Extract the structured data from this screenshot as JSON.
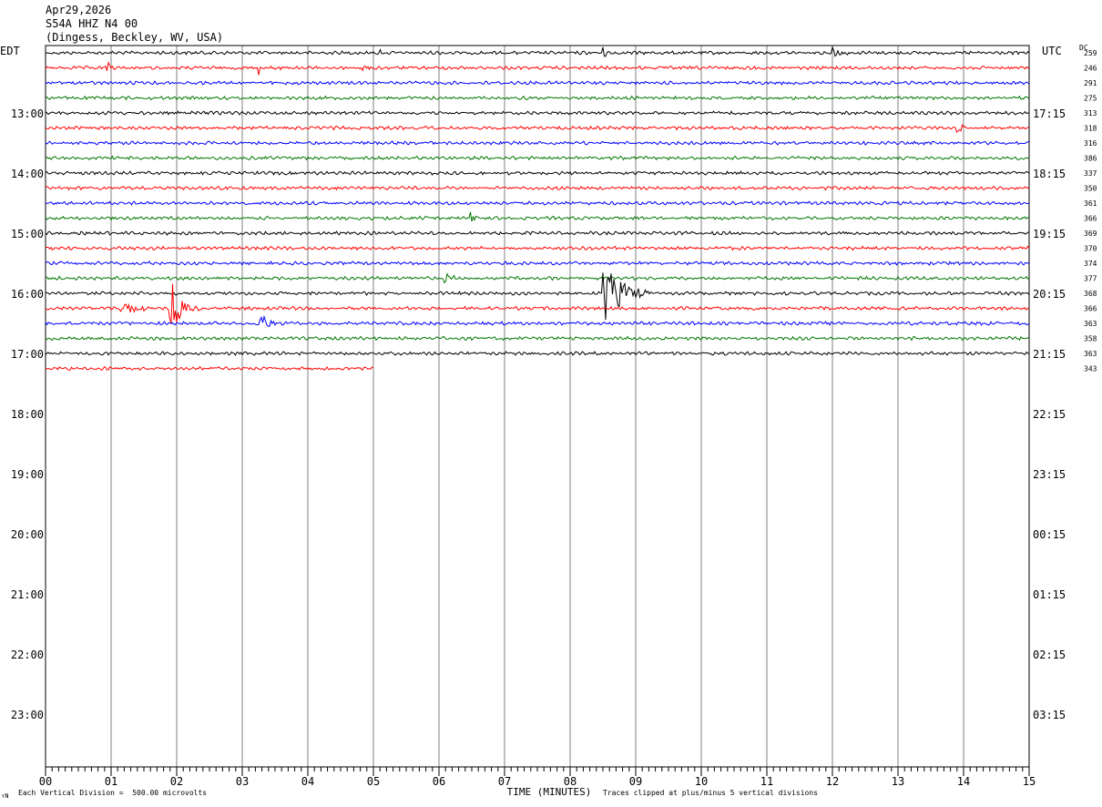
{
  "header": {
    "date": "Apr29,2026",
    "station": "S54A HHZ N4 00",
    "location": "(Dingess, Beckley, WV, USA)"
  },
  "left_zone": "EDT",
  "right_zone": "UTC",
  "dc_label": "DC",
  "footer": {
    "scale_note": "Each Vertical Division =  500.00 microvolts",
    "clip_note": "Traces clipped at plus/minus 5 vertical divisions",
    "corner_mark": "↑N"
  },
  "chart_data": {
    "type": "line",
    "title": "Apr29,2026 S54A HHZ N4 00 (Dingess, Beckley, WV, USA)",
    "xlabel": "TIME (MINUTES)",
    "xlim": [
      0,
      15
    ],
    "x_ticks": [
      "00",
      "01",
      "02",
      "03",
      "04",
      "05",
      "06",
      "07",
      "08",
      "09",
      "10",
      "11",
      "12",
      "13",
      "14",
      "15"
    ],
    "left_hour_labels": [
      "13:00",
      "14:00",
      "15:00",
      "16:00",
      "17:00",
      "18:00",
      "19:00",
      "20:00",
      "21:00",
      "22:00",
      "23:00"
    ],
    "right_hour_labels": [
      "17:15",
      "18:15",
      "19:15",
      "20:15",
      "21:15",
      "22:15",
      "23:15",
      "00:15",
      "01:15",
      "02:15",
      "03:15"
    ],
    "trace_colors": [
      "#000000",
      "#ff0000",
      "#0000ff",
      "#007700"
    ],
    "traces": [
      {
        "dc": "259",
        "end_minute": 15,
        "events": [
          {
            "t": 5.1,
            "amp": 3,
            "dur": 0.15
          },
          {
            "t": 8.5,
            "amp": 6,
            "dur": 0.2
          },
          {
            "t": 12.0,
            "amp": 7,
            "dur": 0.3
          }
        ]
      },
      {
        "dc": "246",
        "end_minute": 15,
        "events": [
          {
            "t": 0.95,
            "amp": 8,
            "dur": 0.15
          },
          {
            "t": 3.25,
            "amp": 9,
            "dur": 0.1
          },
          {
            "t": 3.6,
            "amp": 3,
            "dur": 0.15
          },
          {
            "t": 4.8,
            "amp": 7,
            "dur": 0.15
          }
        ]
      },
      {
        "dc": "291",
        "end_minute": 15,
        "events": []
      },
      {
        "dc": "275",
        "end_minute": 15,
        "events": []
      },
      {
        "dc": "313",
        "end_minute": 15,
        "events": []
      },
      {
        "dc": "318",
        "end_minute": 15,
        "events": [
          {
            "t": 13.9,
            "amp": 10,
            "dur": 0.2
          }
        ]
      },
      {
        "dc": "316",
        "end_minute": 15,
        "events": [
          {
            "t": 12.5,
            "amp": 2,
            "dur": 0.1
          }
        ]
      },
      {
        "dc": "386",
        "end_minute": 15,
        "events": []
      },
      {
        "dc": "337",
        "end_minute": 15,
        "events": []
      },
      {
        "dc": "350",
        "end_minute": 15,
        "events": []
      },
      {
        "dc": "361",
        "end_minute": 15,
        "events": []
      },
      {
        "dc": "366",
        "end_minute": 15,
        "events": [
          {
            "t": 6.45,
            "amp": 9,
            "dur": 0.3
          }
        ]
      },
      {
        "dc": "369",
        "end_minute": 15,
        "events": []
      },
      {
        "dc": "370",
        "end_minute": 15,
        "events": []
      },
      {
        "dc": "374",
        "end_minute": 15,
        "events": [
          {
            "t": 13.4,
            "amp": 2,
            "dur": 0.2
          }
        ]
      },
      {
        "dc": "377",
        "end_minute": 15,
        "events": [
          {
            "t": 6.05,
            "amp": 6,
            "dur": 0.35
          }
        ]
      },
      {
        "dc": "368",
        "end_minute": 15,
        "events": [
          {
            "t": 8.5,
            "amp": 40,
            "dur": 0.7
          },
          {
            "t": 13.6,
            "amp": 2,
            "dur": 0.1
          }
        ]
      },
      {
        "dc": "366",
        "end_minute": 15,
        "events": [
          {
            "t": 1.15,
            "amp": 12,
            "dur": 0.5
          },
          {
            "t": 1.9,
            "amp": 34,
            "dur": 0.45
          },
          {
            "t": 5.5,
            "amp": 3,
            "dur": 0.15
          }
        ]
      },
      {
        "dc": "363",
        "end_minute": 15,
        "events": [
          {
            "t": 3.25,
            "amp": 16,
            "dur": 0.35
          },
          {
            "t": 10.45,
            "amp": 3,
            "dur": 0.15
          }
        ]
      },
      {
        "dc": "358",
        "end_minute": 15,
        "events": [
          {
            "t": 13.2,
            "amp": 4,
            "dur": 0.35
          }
        ]
      },
      {
        "dc": "363",
        "end_minute": 15,
        "events": []
      },
      {
        "dc": "343",
        "end_minute": 5,
        "events": []
      }
    ]
  }
}
